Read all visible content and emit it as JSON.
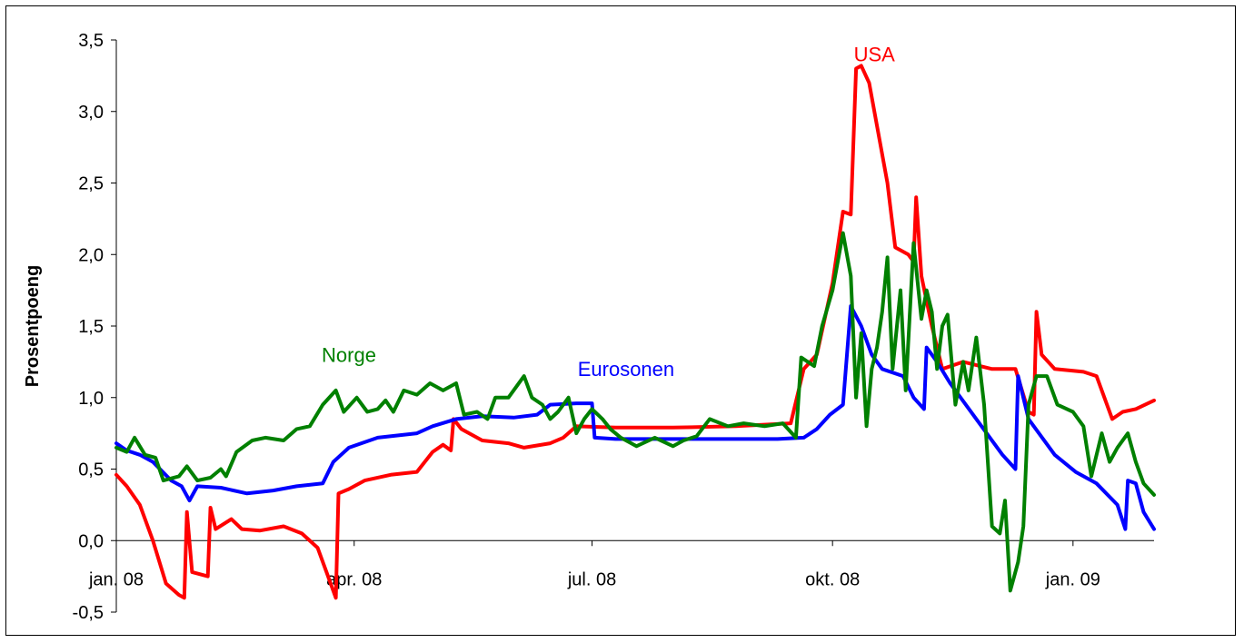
{
  "chart_data": {
    "type": "line",
    "ylabel": "Prosentpoeng",
    "xlabel": "",
    "title": "",
    "ylim": [
      -0.5,
      3.5
    ],
    "xlim": [
      "2008-01-01",
      "2009-02-01"
    ],
    "yticks": [
      "-0,5",
      "0,0",
      "0,5",
      "1,0",
      "1,5",
      "2,0",
      "2,5",
      "3,0",
      "3,5"
    ],
    "xticks": [
      {
        "label": "jan. 08",
        "date": "2008-01-01"
      },
      {
        "label": "apr. 08",
        "date": "2008-04-01"
      },
      {
        "label": "jul. 08",
        "date": "2008-07-01"
      },
      {
        "label": "okt. 08",
        "date": "2008-10-01"
      },
      {
        "label": "jan. 09",
        "date": "2009-01-01"
      }
    ],
    "grid": false,
    "legend": "inline labels",
    "series": [
      {
        "name": "USA",
        "color": "#ff0000",
        "points": [
          [
            "2008-01-01",
            0.46
          ],
          [
            "2008-01-05",
            0.38
          ],
          [
            "2008-01-10",
            0.25
          ],
          [
            "2008-01-15",
            0.0
          ],
          [
            "2008-01-20",
            -0.3
          ],
          [
            "2008-01-25",
            -0.38
          ],
          [
            "2008-01-27",
            -0.4
          ],
          [
            "2008-01-28",
            0.2
          ],
          [
            "2008-01-30",
            -0.22
          ],
          [
            "2008-02-05",
            -0.25
          ],
          [
            "2008-02-06",
            0.23
          ],
          [
            "2008-02-08",
            0.08
          ],
          [
            "2008-02-14",
            0.15
          ],
          [
            "2008-02-18",
            0.08
          ],
          [
            "2008-02-25",
            0.07
          ],
          [
            "2008-03-05",
            0.1
          ],
          [
            "2008-03-12",
            0.05
          ],
          [
            "2008-03-18",
            -0.05
          ],
          [
            "2008-03-22",
            -0.25
          ],
          [
            "2008-03-25",
            -0.4
          ],
          [
            "2008-03-26",
            0.33
          ],
          [
            "2008-03-30",
            0.36
          ],
          [
            "2008-04-05",
            0.42
          ],
          [
            "2008-04-15",
            0.46
          ],
          [
            "2008-04-25",
            0.48
          ],
          [
            "2008-05-01",
            0.62
          ],
          [
            "2008-05-05",
            0.67
          ],
          [
            "2008-05-08",
            0.63
          ],
          [
            "2008-05-09",
            0.85
          ],
          [
            "2008-05-12",
            0.78
          ],
          [
            "2008-05-20",
            0.7
          ],
          [
            "2008-05-30",
            0.68
          ],
          [
            "2008-06-05",
            0.65
          ],
          [
            "2008-06-15",
            0.68
          ],
          [
            "2008-06-20",
            0.72
          ],
          [
            "2008-06-25",
            0.8
          ],
          [
            "2008-07-10",
            0.79
          ],
          [
            "2008-08-01",
            0.79
          ],
          [
            "2008-08-25",
            0.8
          ],
          [
            "2008-09-15",
            0.82
          ],
          [
            "2008-09-20",
            1.2
          ],
          [
            "2008-09-25",
            1.3
          ],
          [
            "2008-10-01",
            1.8
          ],
          [
            "2008-10-05",
            2.3
          ],
          [
            "2008-10-08",
            2.28
          ],
          [
            "2008-10-10",
            3.3
          ],
          [
            "2008-10-12",
            3.32
          ],
          [
            "2008-10-15",
            3.2
          ],
          [
            "2008-10-18",
            2.9
          ],
          [
            "2008-10-22",
            2.5
          ],
          [
            "2008-10-25",
            2.05
          ],
          [
            "2008-10-30",
            2.0
          ],
          [
            "2008-11-01",
            1.95
          ],
          [
            "2008-11-02",
            2.4
          ],
          [
            "2008-11-04",
            1.85
          ],
          [
            "2008-11-08",
            1.5
          ],
          [
            "2008-11-12",
            1.2
          ],
          [
            "2008-11-20",
            1.25
          ],
          [
            "2008-12-01",
            1.2
          ],
          [
            "2008-12-10",
            1.2
          ],
          [
            "2008-12-15",
            0.9
          ],
          [
            "2008-12-17",
            0.88
          ],
          [
            "2008-12-18",
            1.6
          ],
          [
            "2008-12-20",
            1.3
          ],
          [
            "2008-12-25",
            1.2
          ],
          [
            "2009-01-05",
            1.18
          ],
          [
            "2009-01-10",
            1.15
          ],
          [
            "2009-01-14",
            0.95
          ],
          [
            "2009-01-16",
            0.85
          ],
          [
            "2009-01-20",
            0.9
          ],
          [
            "2009-01-25",
            0.92
          ],
          [
            "2009-02-01",
            0.98
          ]
        ]
      },
      {
        "name": "Eurosonen",
        "color": "#0000ff",
        "points": [
          [
            "2008-01-01",
            0.68
          ],
          [
            "2008-01-05",
            0.63
          ],
          [
            "2008-01-10",
            0.6
          ],
          [
            "2008-01-15",
            0.55
          ],
          [
            "2008-01-22",
            0.42
          ],
          [
            "2008-01-26",
            0.38
          ],
          [
            "2008-01-29",
            0.28
          ],
          [
            "2008-02-01",
            0.38
          ],
          [
            "2008-02-10",
            0.37
          ],
          [
            "2008-02-20",
            0.33
          ],
          [
            "2008-03-01",
            0.35
          ],
          [
            "2008-03-10",
            0.38
          ],
          [
            "2008-03-20",
            0.4
          ],
          [
            "2008-03-24",
            0.55
          ],
          [
            "2008-03-30",
            0.65
          ],
          [
            "2008-04-10",
            0.72
          ],
          [
            "2008-04-25",
            0.75
          ],
          [
            "2008-05-01",
            0.8
          ],
          [
            "2008-05-10",
            0.85
          ],
          [
            "2008-05-20",
            0.87
          ],
          [
            "2008-06-01",
            0.86
          ],
          [
            "2008-06-10",
            0.88
          ],
          [
            "2008-06-15",
            0.95
          ],
          [
            "2008-06-25",
            0.96
          ],
          [
            "2008-07-01",
            0.96
          ],
          [
            "2008-07-02",
            0.72
          ],
          [
            "2008-07-10",
            0.71
          ],
          [
            "2008-08-10",
            0.71
          ],
          [
            "2008-09-10",
            0.71
          ],
          [
            "2008-09-20",
            0.72
          ],
          [
            "2008-09-25",
            0.78
          ],
          [
            "2008-09-30",
            0.88
          ],
          [
            "2008-10-05",
            0.95
          ],
          [
            "2008-10-08",
            1.64
          ],
          [
            "2008-10-12",
            1.5
          ],
          [
            "2008-10-16",
            1.3
          ],
          [
            "2008-10-20",
            1.2
          ],
          [
            "2008-10-28",
            1.15
          ],
          [
            "2008-11-01",
            1.0
          ],
          [
            "2008-11-05",
            0.92
          ],
          [
            "2008-11-06",
            1.35
          ],
          [
            "2008-11-10",
            1.25
          ],
          [
            "2008-11-15",
            1.1
          ],
          [
            "2008-11-25",
            0.85
          ],
          [
            "2008-12-05",
            0.6
          ],
          [
            "2008-12-10",
            0.5
          ],
          [
            "2008-12-11",
            1.15
          ],
          [
            "2008-12-15",
            0.85
          ],
          [
            "2008-12-25",
            0.6
          ],
          [
            "2009-01-02",
            0.48
          ],
          [
            "2009-01-10",
            0.4
          ],
          [
            "2009-01-18",
            0.25
          ],
          [
            "2009-01-21",
            0.08
          ],
          [
            "2009-01-22",
            0.42
          ],
          [
            "2009-01-25",
            0.4
          ],
          [
            "2009-01-28",
            0.2
          ],
          [
            "2009-02-01",
            0.08
          ]
        ]
      },
      {
        "name": "Norge",
        "color": "#008000",
        "points": [
          [
            "2008-01-01",
            0.65
          ],
          [
            "2008-01-05",
            0.62
          ],
          [
            "2008-01-08",
            0.72
          ],
          [
            "2008-01-12",
            0.6
          ],
          [
            "2008-01-16",
            0.58
          ],
          [
            "2008-01-19",
            0.42
          ],
          [
            "2008-01-25",
            0.45
          ],
          [
            "2008-01-28",
            0.52
          ],
          [
            "2008-02-01",
            0.42
          ],
          [
            "2008-02-06",
            0.44
          ],
          [
            "2008-02-10",
            0.5
          ],
          [
            "2008-02-12",
            0.45
          ],
          [
            "2008-02-16",
            0.62
          ],
          [
            "2008-02-22",
            0.7
          ],
          [
            "2008-02-27",
            0.72
          ],
          [
            "2008-03-05",
            0.7
          ],
          [
            "2008-03-10",
            0.78
          ],
          [
            "2008-03-15",
            0.8
          ],
          [
            "2008-03-20",
            0.95
          ],
          [
            "2008-03-25",
            1.05
          ],
          [
            "2008-03-28",
            0.9
          ],
          [
            "2008-04-02",
            1.0
          ],
          [
            "2008-04-06",
            0.9
          ],
          [
            "2008-04-10",
            0.92
          ],
          [
            "2008-04-13",
            0.98
          ],
          [
            "2008-04-16",
            0.9
          ],
          [
            "2008-04-20",
            1.05
          ],
          [
            "2008-04-25",
            1.02
          ],
          [
            "2008-04-30",
            1.1
          ],
          [
            "2008-05-05",
            1.05
          ],
          [
            "2008-05-10",
            1.1
          ],
          [
            "2008-05-13",
            0.88
          ],
          [
            "2008-05-18",
            0.9
          ],
          [
            "2008-05-22",
            0.85
          ],
          [
            "2008-05-25",
            1.0
          ],
          [
            "2008-05-30",
            1.0
          ],
          [
            "2008-06-05",
            1.15
          ],
          [
            "2008-06-08",
            1.0
          ],
          [
            "2008-06-12",
            0.95
          ],
          [
            "2008-06-15",
            0.85
          ],
          [
            "2008-06-18",
            0.9
          ],
          [
            "2008-06-22",
            1.0
          ],
          [
            "2008-06-25",
            0.75
          ],
          [
            "2008-06-28",
            0.85
          ],
          [
            "2008-07-01",
            0.92
          ],
          [
            "2008-07-05",
            0.85
          ],
          [
            "2008-07-08",
            0.78
          ],
          [
            "2008-07-12",
            0.72
          ],
          [
            "2008-07-18",
            0.66
          ],
          [
            "2008-07-25",
            0.72
          ],
          [
            "2008-08-01",
            0.66
          ],
          [
            "2008-08-05",
            0.7
          ],
          [
            "2008-08-10",
            0.73
          ],
          [
            "2008-08-15",
            0.85
          ],
          [
            "2008-08-22",
            0.8
          ],
          [
            "2008-08-28",
            0.82
          ],
          [
            "2008-09-05",
            0.8
          ],
          [
            "2008-09-12",
            0.82
          ],
          [
            "2008-09-17",
            0.72
          ],
          [
            "2008-09-19",
            1.28
          ],
          [
            "2008-09-24",
            1.22
          ],
          [
            "2008-09-27",
            1.5
          ],
          [
            "2008-10-01",
            1.75
          ],
          [
            "2008-10-05",
            2.15
          ],
          [
            "2008-10-08",
            1.85
          ],
          [
            "2008-10-10",
            1.0
          ],
          [
            "2008-10-12",
            1.45
          ],
          [
            "2008-10-14",
            0.8
          ],
          [
            "2008-10-16",
            1.2
          ],
          [
            "2008-10-18",
            1.35
          ],
          [
            "2008-10-20",
            1.6
          ],
          [
            "2008-10-22",
            1.98
          ],
          [
            "2008-10-24",
            1.2
          ],
          [
            "2008-10-27",
            1.75
          ],
          [
            "2008-10-29",
            1.05
          ],
          [
            "2008-11-01",
            2.08
          ],
          [
            "2008-11-04",
            1.55
          ],
          [
            "2008-11-06",
            1.75
          ],
          [
            "2008-11-08",
            1.6
          ],
          [
            "2008-11-10",
            1.2
          ],
          [
            "2008-11-12",
            1.5
          ],
          [
            "2008-11-14",
            1.58
          ],
          [
            "2008-11-17",
            0.95
          ],
          [
            "2008-11-20",
            1.25
          ],
          [
            "2008-11-22",
            1.05
          ],
          [
            "2008-11-25",
            1.42
          ],
          [
            "2008-11-28",
            0.95
          ],
          [
            "2008-12-01",
            0.1
          ],
          [
            "2008-12-04",
            0.05
          ],
          [
            "2008-12-06",
            0.28
          ],
          [
            "2008-12-08",
            -0.35
          ],
          [
            "2008-12-11",
            -0.15
          ],
          [
            "2008-12-13",
            0.1
          ],
          [
            "2008-12-15",
            0.95
          ],
          [
            "2008-12-18",
            1.15
          ],
          [
            "2008-12-22",
            1.15
          ],
          [
            "2008-12-26",
            0.95
          ],
          [
            "2009-01-01",
            0.9
          ],
          [
            "2009-01-05",
            0.8
          ],
          [
            "2009-01-08",
            0.45
          ],
          [
            "2009-01-12",
            0.75
          ],
          [
            "2009-01-15",
            0.55
          ],
          [
            "2009-01-18",
            0.65
          ],
          [
            "2009-01-22",
            0.75
          ],
          [
            "2009-01-25",
            0.55
          ],
          [
            "2009-01-28",
            0.4
          ],
          [
            "2009-02-01",
            0.32
          ]
        ]
      }
    ],
    "annotations": [
      {
        "text": "USA",
        "color": "#ff0000",
        "date": "2008-10-17",
        "y": 3.35
      },
      {
        "text": "Norge",
        "color": "#008000",
        "date": "2008-03-30",
        "y": 1.25
      },
      {
        "text": "Eurosonen",
        "color": "#0000ff",
        "date": "2008-07-14",
        "y": 1.15
      }
    ]
  }
}
